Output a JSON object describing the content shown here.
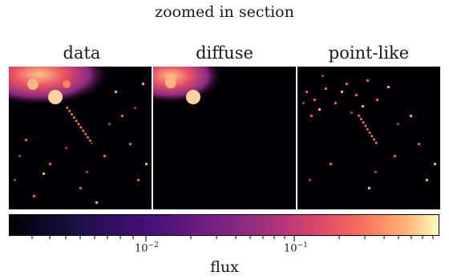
{
  "figure": {
    "title": "zoomed in section",
    "panels": [
      {
        "label": "data"
      },
      {
        "label": "diffuse"
      },
      {
        "label": "point-like"
      }
    ],
    "colorbar": {
      "label": "flux",
      "scale": "log",
      "colormap": "magma",
      "ticks": [
        {
          "base": "10",
          "exp": "−2"
        },
        {
          "base": "10",
          "exp": "−1"
        }
      ]
    }
  }
}
